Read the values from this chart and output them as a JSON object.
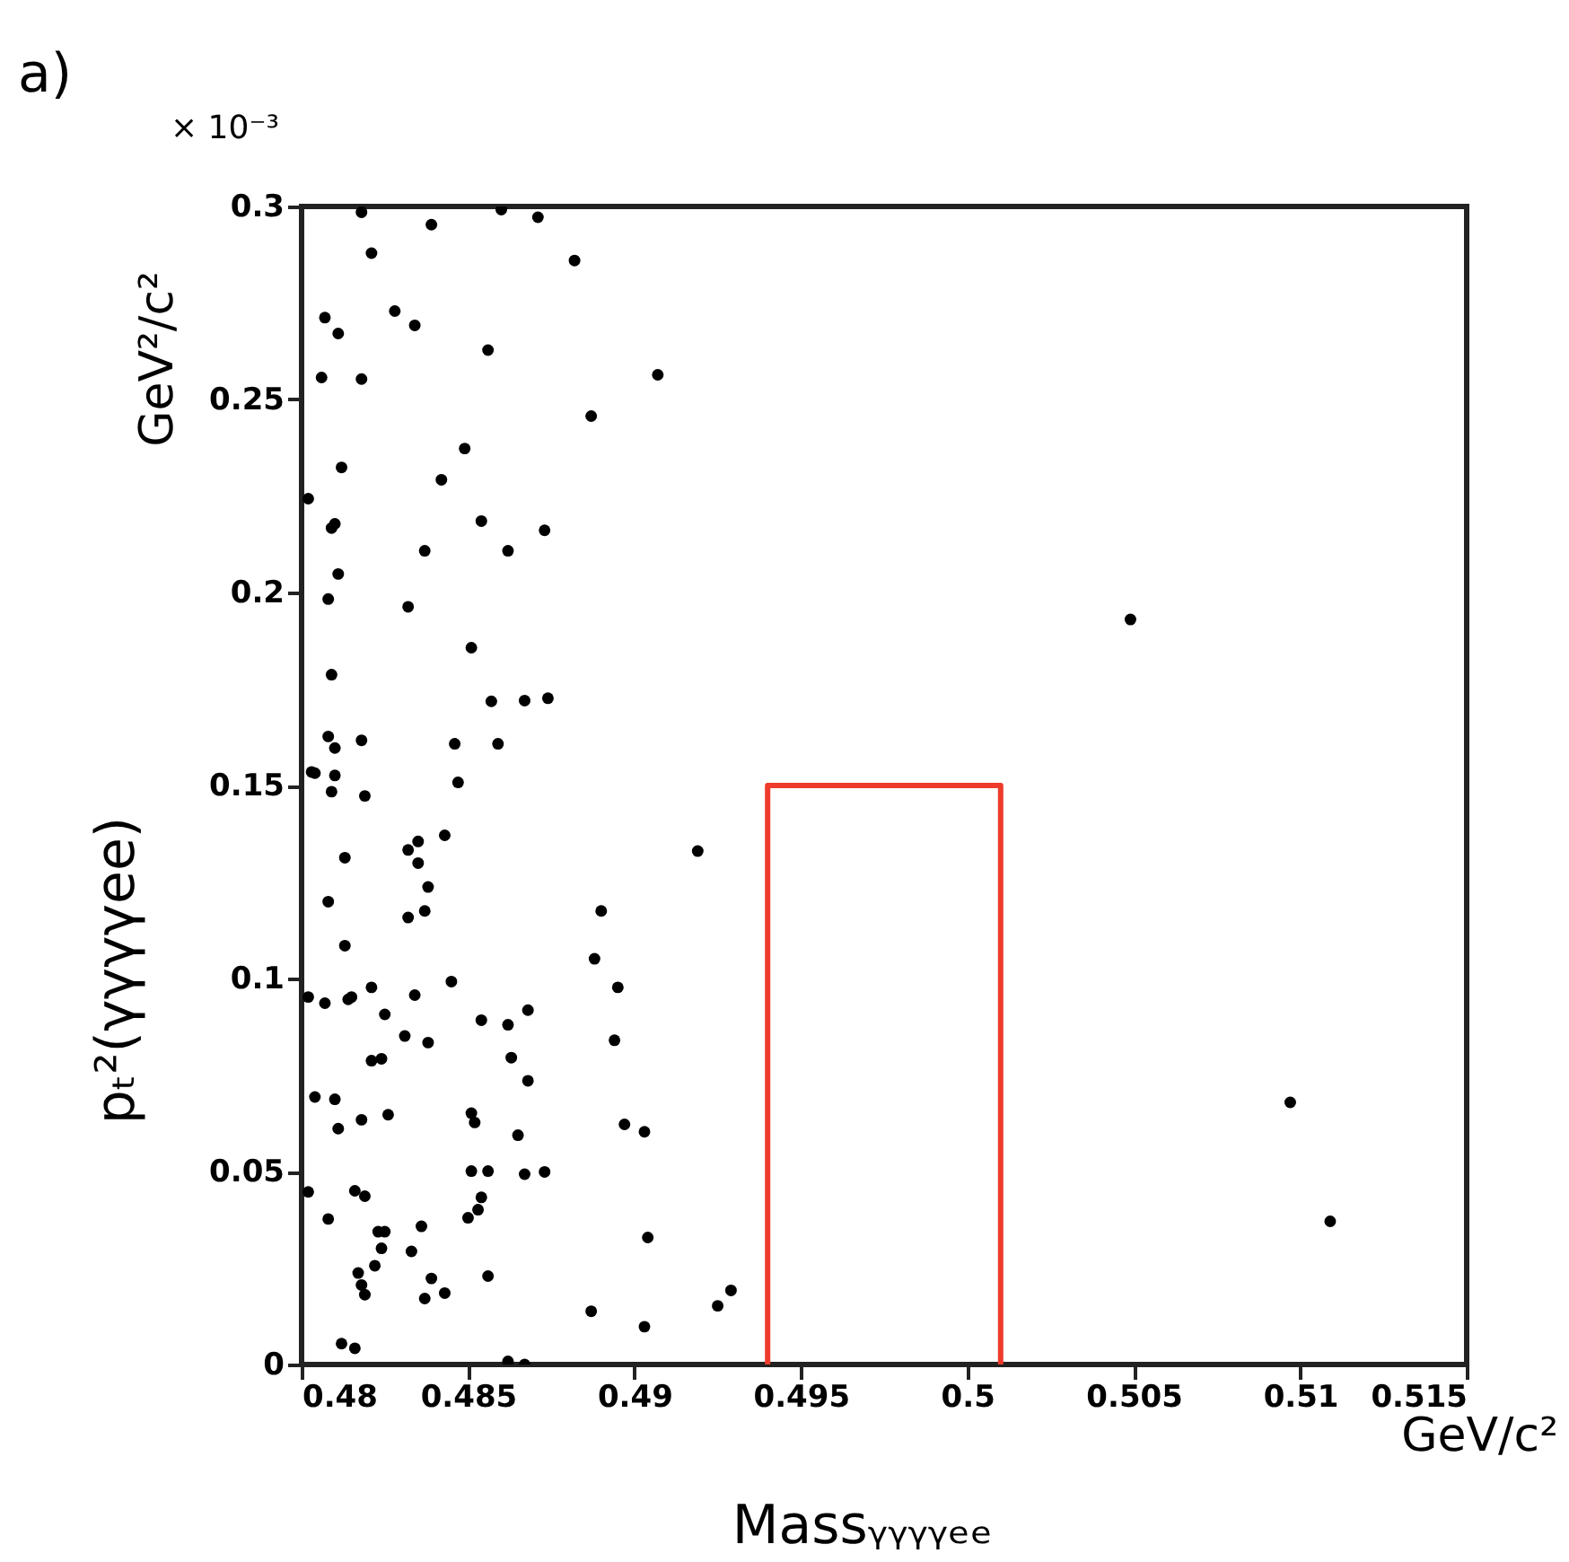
{
  "chart_data": {
    "type": "scatter",
    "xlabel": "Massᵧᵧᵧᵧₑₑ",
    "ylabel": "pₜ²(γγγγee)",
    "annotations": [
      "a)",
      "× 10⁻³",
      "GeV²/c²",
      "GeV/c²"
    ],
    "xlim": [
      0.48,
      0.515
    ],
    "xticks": [
      0.48,
      0.485,
      0.49,
      0.495,
      0.5,
      0.505,
      0.51,
      0.515
    ],
    "ylim": [
      0,
      0.3
    ],
    "yticks": [
      0,
      0.05,
      0.1,
      0.15,
      0.2,
      0.25,
      0.3
    ],
    "grid": false,
    "series": [
      {
        "color": "#000000",
        "marker": "circle",
        "x": [
          0.4818,
          0.4839,
          0.486,
          0.4871,
          0.4821,
          0.4882,
          0.4807,
          0.4811,
          0.4828,
          0.4834,
          0.4856,
          0.4806,
          0.4818,
          0.4907,
          0.4887,
          0.4849,
          0.4812,
          0.4842,
          0.4802,
          0.4809,
          0.481,
          0.4854,
          0.4873,
          0.4837,
          0.4862,
          0.4811,
          0.5049,
          0.4808,
          0.4832,
          0.4851,
          0.4809,
          0.4857,
          0.4867,
          0.4874,
          0.4808,
          0.481,
          0.4818,
          0.4846,
          0.4859,
          0.4803,
          0.4804,
          0.481,
          0.4847,
          0.4809,
          0.4819,
          0.4843,
          0.4832,
          0.4835,
          0.4813,
          0.4835,
          0.4919,
          0.4838,
          0.4808,
          0.4832,
          0.4837,
          0.489,
          0.4813,
          0.4888,
          0.4821,
          0.4845,
          0.4895,
          0.4802,
          0.4807,
          0.4814,
          0.4815,
          0.4834,
          0.4825,
          0.4831,
          0.4838,
          0.4854,
          0.4862,
          0.4868,
          0.4894,
          0.4821,
          0.4824,
          0.4863,
          0.4868,
          0.4804,
          0.481,
          0.4811,
          0.4818,
          0.4826,
          0.4851,
          0.4852,
          0.4865,
          0.4897,
          0.4903,
          0.4851,
          0.4856,
          0.4867,
          0.4873,
          0.4802,
          0.4816,
          0.4819,
          0.4808,
          0.4854,
          0.4853,
          0.485,
          0.4823,
          0.4825,
          0.4836,
          0.4824,
          0.4833,
          0.4904,
          0.4822,
          0.4817,
          0.4818,
          0.4819,
          0.4839,
          0.4837,
          0.4843,
          0.4856,
          0.4887,
          0.4903,
          0.4925,
          0.4929,
          0.4812,
          0.4816,
          0.4862,
          0.4867,
          0.5097,
          0.5109
        ],
        "values": [
          0.2985,
          0.2953,
          0.2992,
          0.2972,
          0.2879,
          0.286,
          0.2712,
          0.2671,
          0.2729,
          0.2692,
          0.2628,
          0.2557,
          0.2553,
          0.2564,
          0.2457,
          0.2373,
          0.2324,
          0.2292,
          0.2243,
          0.2167,
          0.2178,
          0.2185,
          0.2161,
          0.2108,
          0.2108,
          0.2048,
          0.193,
          0.1983,
          0.1963,
          0.1857,
          0.1787,
          0.1718,
          0.172,
          0.1726,
          0.1627,
          0.1597,
          0.1617,
          0.1608,
          0.1608,
          0.1535,
          0.1532,
          0.1526,
          0.1508,
          0.1484,
          0.1473,
          0.1371,
          0.1333,
          0.1355,
          0.1313,
          0.1299,
          0.133,
          0.1237,
          0.1199,
          0.1158,
          0.1175,
          0.1175,
          0.1085,
          0.1051,
          0.0977,
          0.0992,
          0.0977,
          0.0952,
          0.0936,
          0.0946,
          0.0952,
          0.0957,
          0.0907,
          0.0851,
          0.0834,
          0.0892,
          0.088,
          0.0918,
          0.084,
          0.0787,
          0.0792,
          0.0795,
          0.0735,
          0.0693,
          0.0687,
          0.0611,
          0.0634,
          0.0647,
          0.0651,
          0.0627,
          0.0594,
          0.0622,
          0.0603,
          0.0501,
          0.0501,
          0.0493,
          0.0499,
          0.0447,
          0.045,
          0.0436,
          0.0377,
          0.0433,
          0.0401,
          0.038,
          0.0344,
          0.0344,
          0.0358,
          0.0301,
          0.0293,
          0.0329,
          0.0256,
          0.0237,
          0.0206,
          0.0181,
          0.0223,
          0.0171,
          0.0185,
          0.0229,
          0.0138,
          0.0098,
          0.0152,
          0.0192,
          0.0054,
          0.0042,
          0.0008,
          0,
          0.0679,
          0.0371
        ]
      },
      {
        "type": "line",
        "color": "#ee3b2b",
        "marker": "none",
        "x": [
          0.494,
          0.494,
          0.501,
          0.501
        ],
        "values": [
          0,
          0.15,
          0.15,
          0
        ]
      }
    ]
  }
}
